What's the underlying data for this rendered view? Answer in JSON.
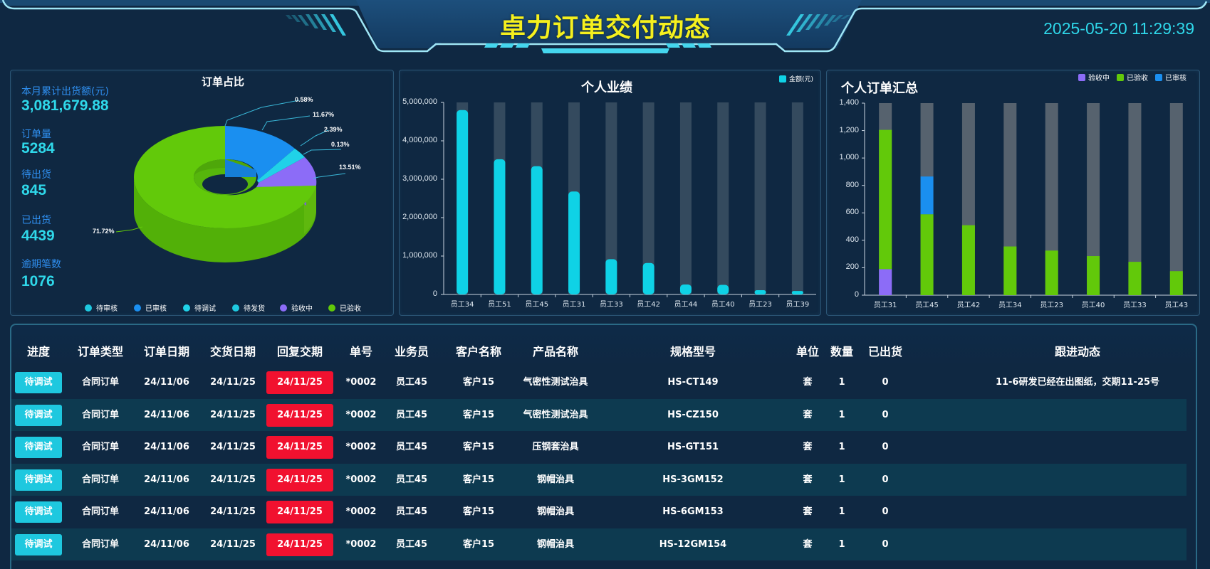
{
  "header": {
    "title": "卓力订单交付动态",
    "datetime": "2025-05-20 11:29:39"
  },
  "stats": [
    {
      "label": "本月累计出货额(元)",
      "value": "3,081,679.88"
    },
    {
      "label": "订单量",
      "value": "5284"
    },
    {
      "label": "待出货",
      "value": "845"
    },
    {
      "label": "已出货",
      "value": "4439"
    },
    {
      "label": "逾期笔数",
      "value": "1076"
    }
  ],
  "colors": {
    "background": "#0f2842",
    "accent": "#2fd8ea",
    "title_yellow": "#f5f01e",
    "overdue_red": "#f1112f",
    "status_cyan": "#1ec8df"
  },
  "chart_data": [
    {
      "type": "pie",
      "title": "订单占比",
      "categories": [
        "待审核",
        "已审核",
        "待调试",
        "待发货",
        "验收中",
        "已验收"
      ],
      "values": [
        0.58,
        11.67,
        2.39,
        0.13,
        13.51,
        71.72
      ],
      "labels": [
        "0.58%",
        "11.67%",
        "2.39%",
        "0.13%",
        "13.51%",
        "71.72%"
      ],
      "colors": [
        "#1ec8df",
        "#1a8ff0",
        "#20d2e8",
        "#1ec8df",
        "#8c6cf7",
        "#62c90a"
      ],
      "legend_position": "bottom",
      "style": "3d-donut"
    },
    {
      "type": "bar",
      "title": "个人业绩",
      "categories": [
        "员工34",
        "员工51",
        "员工45",
        "员工31",
        "员工33",
        "员工42",
        "员工44",
        "员工40",
        "员工23",
        "员工39"
      ],
      "series": [
        {
          "name": "金额(元)",
          "values": [
            4800000,
            3520000,
            3340000,
            2680000,
            920000,
            820000,
            260000,
            250000,
            110000,
            90000
          ],
          "color": "#0fd2e6"
        }
      ],
      "yticks": [
        "0",
        "1,000,000",
        "2,000,000",
        "3,000,000",
        "4,000,000",
        "5,000,000"
      ],
      "ylim": [
        0,
        5000000
      ],
      "background_bar": true,
      "legend_position": "top-right",
      "xlabel": "",
      "ylabel": ""
    },
    {
      "type": "bar",
      "stacked": true,
      "title": "个人订单汇总",
      "categories": [
        "员工31",
        "员工45",
        "员工42",
        "员工34",
        "员工23",
        "员工40",
        "员工33",
        "员工43"
      ],
      "series": [
        {
          "name": "验收中",
          "values": [
            190,
            0,
            0,
            0,
            0,
            0,
            0,
            0
          ],
          "color": "#8c6cf7"
        },
        {
          "name": "已验收",
          "values": [
            1015,
            590,
            510,
            355,
            325,
            285,
            243,
            175
          ],
          "color": "#62c90a"
        },
        {
          "name": "已审核",
          "values": [
            0,
            275,
            0,
            0,
            0,
            0,
            0,
            0
          ],
          "color": "#1a8ff0"
        }
      ],
      "yticks": [
        "0",
        "200",
        "400",
        "600",
        "800",
        "1,000",
        "1,200",
        "1,400"
      ],
      "ylim": [
        0,
        1400
      ],
      "background_bar": true,
      "legend_position": "top-right",
      "xlabel": "",
      "ylabel": ""
    }
  ],
  "table": {
    "headers": [
      "进度",
      "订单类型",
      "订单日期",
      "交货日期",
      "回复交期",
      "单号",
      "业务员",
      "客户名称",
      "产品名称",
      "规格型号",
      "单位",
      "数量",
      "已出货",
      "跟进动态"
    ],
    "rows": [
      {
        "status": "待调试",
        "type": "合同订单",
        "order_date": "24/11/06",
        "delivery_date": "24/11/25",
        "reply_date": "24/11/25",
        "order_no": "*0002",
        "sales": "员工45",
        "customer": "客户15",
        "product": "气密性测试治具",
        "spec": "HS-CT149",
        "unit": "套",
        "qty": "1",
        "shipped": "0",
        "followup": "11-6研发已经在出图纸，交期11-25号"
      },
      {
        "status": "待调试",
        "type": "合同订单",
        "order_date": "24/11/06",
        "delivery_date": "24/11/25",
        "reply_date": "24/11/25",
        "order_no": "*0002",
        "sales": "员工45",
        "customer": "客户15",
        "product": "气密性测试治具",
        "spec": "HS-CZ150",
        "unit": "套",
        "qty": "1",
        "shipped": "0",
        "followup": ""
      },
      {
        "status": "待调试",
        "type": "合同订单",
        "order_date": "24/11/06",
        "delivery_date": "24/11/25",
        "reply_date": "24/11/25",
        "order_no": "*0002",
        "sales": "员工45",
        "customer": "客户15",
        "product": "压钢套治具",
        "spec": "HS-GT151",
        "unit": "套",
        "qty": "1",
        "shipped": "0",
        "followup": ""
      },
      {
        "status": "待调试",
        "type": "合同订单",
        "order_date": "24/11/06",
        "delivery_date": "24/11/25",
        "reply_date": "24/11/25",
        "order_no": "*0002",
        "sales": "员工45",
        "customer": "客户15",
        "product": "钢帽治具",
        "spec": "HS-3GM152",
        "unit": "套",
        "qty": "1",
        "shipped": "0",
        "followup": ""
      },
      {
        "status": "待调试",
        "type": "合同订单",
        "order_date": "24/11/06",
        "delivery_date": "24/11/25",
        "reply_date": "24/11/25",
        "order_no": "*0002",
        "sales": "员工45",
        "customer": "客户15",
        "product": "钢帽治具",
        "spec": "HS-6GM153",
        "unit": "套",
        "qty": "1",
        "shipped": "0",
        "followup": ""
      },
      {
        "status": "待调试",
        "type": "合同订单",
        "order_date": "24/11/06",
        "delivery_date": "24/11/25",
        "reply_date": "24/11/25",
        "order_no": "*0002",
        "sales": "员工45",
        "customer": "客户15",
        "product": "钢帽治具",
        "spec": "HS-12GM154",
        "unit": "套",
        "qty": "1",
        "shipped": "0",
        "followup": ""
      }
    ]
  }
}
